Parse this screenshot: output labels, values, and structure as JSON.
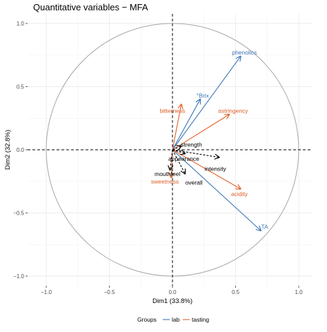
{
  "chart_data": {
    "type": "correlation-circle",
    "title": "Quantitative variables − MFA",
    "xlabel": "Dim1 (33.8%)",
    "ylabel": "Dim2 (32.8%)",
    "xlim": [
      -1.0,
      1.0
    ],
    "ylim": [
      -1.0,
      1.0
    ],
    "x_ticks": [
      -1.0,
      -0.5,
      0.0,
      0.5,
      1.0
    ],
    "y_ticks": [
      -1.0,
      -0.5,
      0.0,
      0.5,
      1.0
    ],
    "grid": true,
    "legend": {
      "title": "Groups",
      "position": "bottom",
      "items": [
        {
          "name": "lab",
          "color": "#3a75b5"
        },
        {
          "name": "tasting",
          "color": "#e0602a"
        }
      ]
    },
    "variables": [
      {
        "name": "phenolics",
        "group": "lab",
        "x": 0.54,
        "y": 0.74,
        "style": "solid"
      },
      {
        "name": "°Brix",
        "group": "lab",
        "x": 0.22,
        "y": 0.4,
        "style": "solid"
      },
      {
        "name": "TA",
        "group": "lab",
        "x": 0.7,
        "y": -0.64,
        "style": "solid"
      },
      {
        "name": "bitterness",
        "group": "tasting",
        "x": 0.07,
        "y": 0.36,
        "style": "solid"
      },
      {
        "name": "astringency",
        "group": "tasting",
        "x": 0.45,
        "y": 0.28,
        "style": "solid"
      },
      {
        "name": "acidity",
        "group": "tasting",
        "x": 0.54,
        "y": -0.31,
        "style": "solid"
      },
      {
        "name": "sweetness",
        "group": "tasting",
        "x": -0.01,
        "y": -0.22,
        "style": "solid"
      },
      {
        "name": "strength",
        "group": "tasting",
        "x": 0.07,
        "y": 0.03,
        "style": "dashed"
      },
      {
        "name": "appearance",
        "group": "tasting",
        "x": 0.1,
        "y": -0.03,
        "style": "dashed"
      },
      {
        "name": "intensity",
        "group": "tasting",
        "x": 0.37,
        "y": -0.06,
        "style": "dashed"
      },
      {
        "name": "mouthfeel",
        "group": "tasting",
        "x": -0.02,
        "y": -0.16,
        "style": "dashed"
      },
      {
        "name": "overall",
        "group": "tasting",
        "x": 0.1,
        "y": -0.19,
        "style": "dashed"
      }
    ],
    "label_positions": {
      "phenolics": [
        0.57,
        0.77
      ],
      "°Brix": [
        0.24,
        0.43
      ],
      "TA": [
        0.73,
        -0.61
      ],
      "bitterness": [
        0.0,
        0.31
      ],
      "astringency": [
        0.48,
        0.31
      ],
      "acidity": [
        0.53,
        -0.35
      ],
      "sweetness": [
        -0.06,
        -0.25
      ],
      "strength": [
        0.15,
        0.04
      ],
      "appearance": [
        0.09,
        -0.07
      ],
      "intensity": [
        0.34,
        -0.15
      ],
      "mouthfeel": [
        -0.04,
        -0.19
      ],
      "overall": [
        0.17,
        -0.26
      ]
    }
  }
}
